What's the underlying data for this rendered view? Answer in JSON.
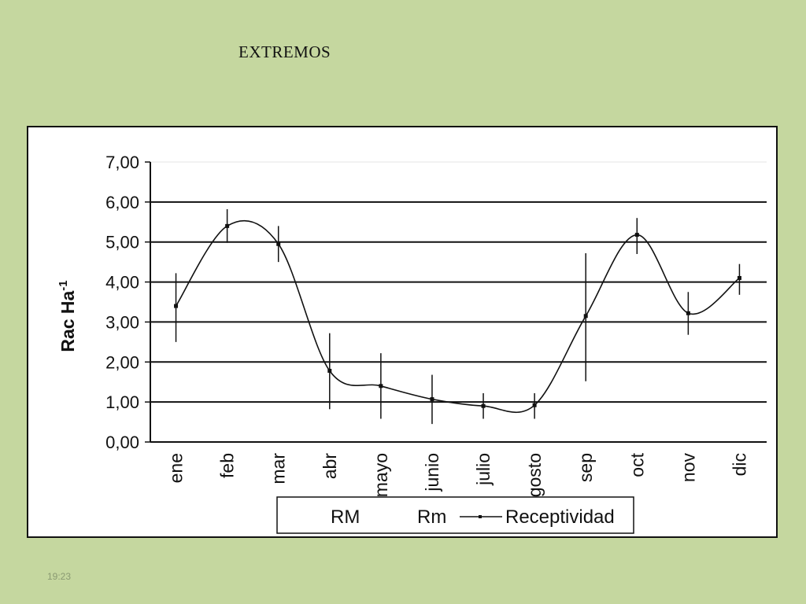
{
  "slide": {
    "title": "EXTREMOS",
    "timestamp": "19:23"
  },
  "colors": {
    "background": "#c5d79f",
    "plot_background": "#ffffff",
    "line": "#111111"
  },
  "chart_data": {
    "type": "line",
    "title": "",
    "xlabel": "",
    "ylabel": "Rac Ha",
    "ylabel_superscript": "-1",
    "categories": [
      "ene",
      "feb",
      "mar",
      "abr",
      "mayo",
      "junio",
      "julio",
      "agosto",
      "sep",
      "oct",
      "nov",
      "dic"
    ],
    "ylim": [
      0,
      7
    ],
    "yticks": [
      "0,00",
      "1,00",
      "2,00",
      "3,00",
      "4,00",
      "5,00",
      "6,00",
      "7,00"
    ],
    "grid": true,
    "legend_placement": "bottom",
    "legend": [
      "RM",
      "Rm",
      "Receptividad"
    ],
    "series": [
      {
        "name": "Receptividad",
        "values": [
          3.4,
          5.4,
          4.95,
          1.78,
          1.4,
          1.07,
          0.9,
          0.92,
          3.15,
          5.18,
          3.22,
          4.1
        ]
      },
      {
        "name": "RM",
        "values": [
          4.22,
          5.82,
          5.4,
          2.72,
          2.22,
          1.68,
          1.22,
          1.22,
          4.72,
          5.6,
          3.75,
          4.45
        ]
      },
      {
        "name": "Rm",
        "values": [
          2.5,
          4.98,
          4.5,
          0.82,
          0.58,
          0.45,
          0.58,
          0.58,
          1.52,
          4.7,
          2.68,
          3.68
        ]
      }
    ]
  }
}
